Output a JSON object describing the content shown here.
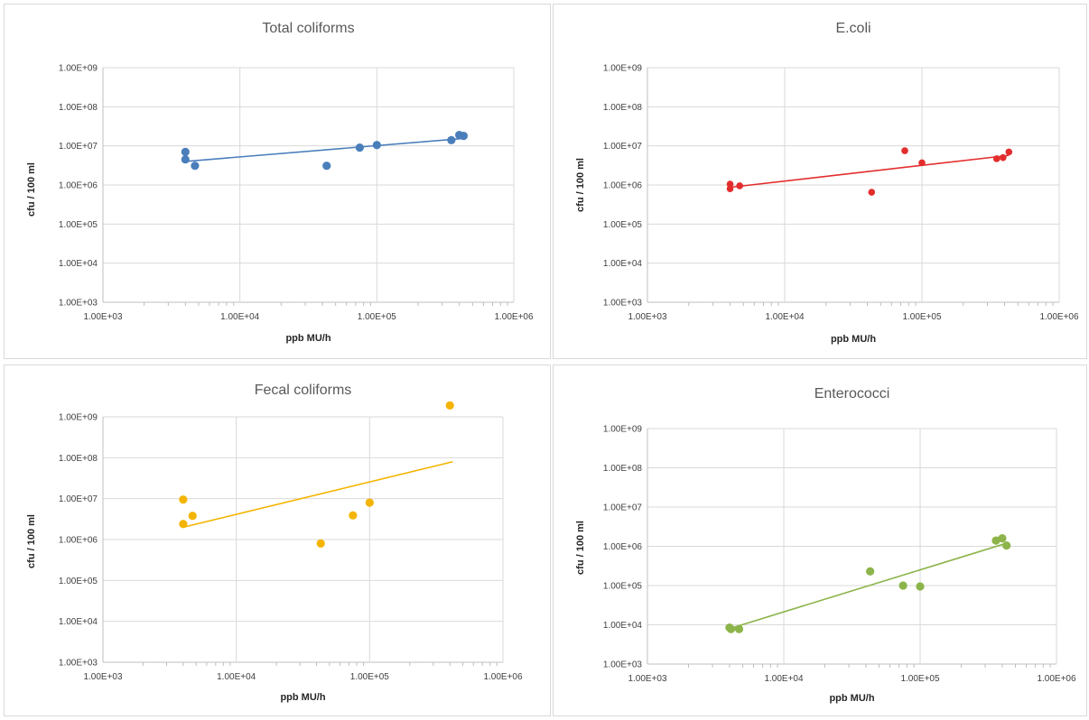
{
  "chart_data": [
    {
      "type": "scatter",
      "title": "Total coliforms",
      "xlabel": "ppb MU/h",
      "ylabel": "cfu / 100 ml",
      "xscale": "log",
      "yscale": "log",
      "xlim": [
        1000,
        1000000
      ],
      "ylim": [
        1000,
        1000000000
      ],
      "x_tick_labels": [
        "1.00E+03",
        "1.00E+04",
        "1.00E+05",
        "1.00E+06"
      ],
      "y_tick_labels": [
        "1.00E+03",
        "1.00E+04",
        "1.00E+05",
        "1.00E+06",
        "1.00E+07",
        "1.00E+08",
        "1.00E+09"
      ],
      "grid": true,
      "color": "#4a7ebb",
      "points": [
        {
          "x": 4000,
          "y": 7000000
        },
        {
          "x": 4000,
          "y": 4500000
        },
        {
          "x": 4700,
          "y": 3100000
        },
        {
          "x": 43000,
          "y": 3100000
        },
        {
          "x": 75000,
          "y": 9000000
        },
        {
          "x": 100000,
          "y": 10500000
        },
        {
          "x": 350000,
          "y": 14000000
        },
        {
          "x": 400000,
          "y": 19000000
        },
        {
          "x": 430000,
          "y": 18000000
        }
      ],
      "trendline": [
        {
          "x": 4000,
          "y": 4000000
        },
        {
          "x": 430000,
          "y": 15500000
        }
      ]
    },
    {
      "type": "scatter",
      "title": "E.coli",
      "xlabel": "ppb MU/h",
      "ylabel": "cfu / 100 ml",
      "xscale": "log",
      "yscale": "log",
      "xlim": [
        1000,
        1000000
      ],
      "ylim": [
        1000,
        1000000000
      ],
      "x_tick_labels": [
        "1.00E+03",
        "1.00E+04",
        "1.00E+05",
        "1.00E+06"
      ],
      "y_tick_labels": [
        "1.00E+03",
        "1.00E+04",
        "1.00E+05",
        "1.00E+06",
        "1.00E+07",
        "1.00E+08",
        "1.00E+09"
      ],
      "grid": true,
      "color": "#e32d2d",
      "points": [
        {
          "x": 4000,
          "y": 1050000
        },
        {
          "x": 4000,
          "y": 800000
        },
        {
          "x": 4700,
          "y": 950000
        },
        {
          "x": 43000,
          "y": 650000
        },
        {
          "x": 75000,
          "y": 7500000
        },
        {
          "x": 100000,
          "y": 3700000
        },
        {
          "x": 350000,
          "y": 4700000
        },
        {
          "x": 390000,
          "y": 5000000
        },
        {
          "x": 430000,
          "y": 7000000
        }
      ],
      "trendline": [
        {
          "x": 4000,
          "y": 870000
        },
        {
          "x": 430000,
          "y": 5700000
        }
      ]
    },
    {
      "type": "scatter",
      "title": "Fecal coliforms",
      "xlabel": "ppb MU/h",
      "ylabel": "cfu / 100 ml",
      "xscale": "log",
      "yscale": "log",
      "xlim": [
        1000,
        1000000
      ],
      "ylim": [
        1000,
        1000000000
      ],
      "x_tick_labels": [
        "1.00E+03",
        "1.00E+04",
        "1.00E+05",
        "1.00E+06"
      ],
      "y_tick_labels": [
        "1.00E+03",
        "1.00E+04",
        "1.00E+05",
        "1.00E+06",
        "1.00E+07",
        "1.00E+08",
        "1.00E+09"
      ],
      "grid": true,
      "color": "#f4b400",
      "points": [
        {
          "x": 4000,
          "y": 9500000
        },
        {
          "x": 4000,
          "y": 2400000
        },
        {
          "x": 4700,
          "y": 3800000
        },
        {
          "x": 43000,
          "y": 800000
        },
        {
          "x": 75000,
          "y": 3900000
        },
        {
          "x": 100000,
          "y": 8000000
        },
        {
          "x": 400000,
          "y": 1900000000
        }
      ],
      "trendline": [
        {
          "x": 4000,
          "y": 2000000
        },
        {
          "x": 420000,
          "y": 80000000
        }
      ]
    },
    {
      "type": "scatter",
      "title": "Enterococci",
      "xlabel": "ppb MU/h",
      "ylabel": "cfu / 100 ml",
      "xscale": "log",
      "yscale": "log",
      "xlim": [
        1000,
        1000000
      ],
      "ylim": [
        1000,
        1000000000
      ],
      "x_tick_labels": [
        "1.00E+03",
        "1.00E+04",
        "1.00E+05",
        "1.00E+06"
      ],
      "y_tick_labels": [
        "1.00E+03",
        "1.00E+04",
        "1.00E+05",
        "1.00E+06",
        "1.00E+07",
        "1.00E+08",
        "1.00E+09"
      ],
      "grid": true,
      "color": "#8cb44a",
      "points": [
        {
          "x": 4000,
          "y": 8500
        },
        {
          "x": 4100,
          "y": 7800
        },
        {
          "x": 4700,
          "y": 7800
        },
        {
          "x": 43000,
          "y": 230000
        },
        {
          "x": 75000,
          "y": 100000
        },
        {
          "x": 100000,
          "y": 95000
        },
        {
          "x": 360000,
          "y": 1400000
        },
        {
          "x": 400000,
          "y": 1600000
        },
        {
          "x": 430000,
          "y": 1050000
        }
      ],
      "trendline": [
        {
          "x": 4000,
          "y": 8000
        },
        {
          "x": 430000,
          "y": 1200000
        }
      ]
    }
  ]
}
